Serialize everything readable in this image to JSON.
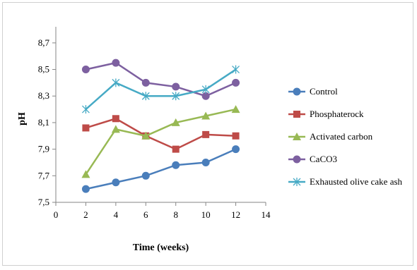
{
  "chart_data": {
    "type": "line",
    "xlabel": "Time (weeks)",
    "ylabel": "pH",
    "xlim": [
      0,
      14
    ],
    "ylim": [
      7.5,
      8.8
    ],
    "x_ticks": [
      "0",
      "2",
      "4",
      "6",
      "8",
      "10",
      "12",
      "14"
    ],
    "y_ticks": [
      "7,5",
      "7,7",
      "7,9",
      "8,1",
      "8,3",
      "8,5",
      "8,7"
    ],
    "x": [
      2,
      4,
      6,
      8,
      10,
      12
    ],
    "grid": false,
    "legend_position": "right",
    "series": [
      {
        "name": "Control",
        "color": "#4a7ebb",
        "marker": "circle",
        "values": [
          7.6,
          7.65,
          7.7,
          7.78,
          7.8,
          7.9
        ]
      },
      {
        "name": "Phosphaterock",
        "color": "#be4b48",
        "marker": "square",
        "values": [
          8.06,
          8.13,
          8.0,
          7.9,
          8.01,
          8.0
        ]
      },
      {
        "name": "Activated carbon",
        "color": "#98b954",
        "marker": "triangle",
        "values": [
          7.71,
          8.05,
          8.0,
          8.1,
          8.15,
          8.2
        ]
      },
      {
        "name": "CaCO3",
        "color": "#7d60a0",
        "marker": "circle",
        "values": [
          8.5,
          8.55,
          8.4,
          8.37,
          8.3,
          8.4
        ]
      },
      {
        "name": "Exhausted olive cake ash",
        "color": "#46aac5",
        "marker": "star",
        "values": [
          8.2,
          8.4,
          8.3,
          8.3,
          8.35,
          8.5
        ]
      }
    ]
  }
}
